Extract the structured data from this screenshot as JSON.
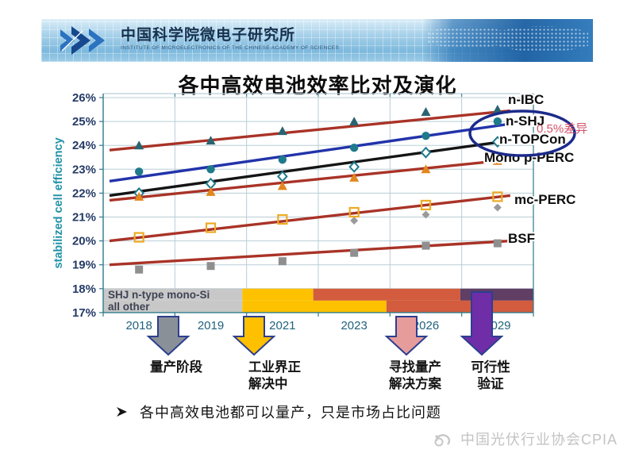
{
  "header": {
    "institute_cn": "中国科学院微电子研究所",
    "institute_en": "INSTITUTE OF MICROELECTRONICS OF THE CHINESE ACADEMY OF SCIENCES"
  },
  "title": "各中高效电池效率比对及演化",
  "chart_data": {
    "type": "line",
    "title": "各中高效电池效率比对及演化",
    "ylabel": "stabilized cell efficiency",
    "ylim": [
      17,
      26
    ],
    "ytick_step": 1,
    "ytick_suffix": "%",
    "grid": true,
    "categories": [
      "2018",
      "2019",
      "2021",
      "2023",
      "2026",
      "2029"
    ],
    "series": [
      {
        "name": "n-IBC",
        "marker": "triangle",
        "marker_color": "#2a6470",
        "line_color": "#a93327",
        "values": [
          24.0,
          24.2,
          24.6,
          25.0,
          25.4,
          25.5
        ],
        "trend": [
          23.8,
          25.45
        ]
      },
      {
        "name": "n-SHJ",
        "marker": "circle",
        "marker_color": "#1f7a8c",
        "line_color": "#2233aa",
        "values": [
          22.9,
          23.0,
          23.4,
          23.9,
          24.4,
          25.0
        ],
        "trend": [
          22.5,
          24.9
        ]
      },
      {
        "name": "n-TOPCon",
        "marker": "diamond-open",
        "marker_color": "#1f7a8c",
        "line_color": "#141414",
        "values": [
          22.0,
          22.4,
          22.7,
          23.1,
          23.7,
          24.15
        ],
        "trend": [
          21.9,
          24.2
        ]
      },
      {
        "name": "Mono p-PERC",
        "marker": "triangle",
        "marker_color": "#e2861f",
        "line_color": "#a93327",
        "values": [
          21.85,
          22.05,
          22.3,
          22.65,
          23.0,
          23.35
        ],
        "trend": [
          21.7,
          23.4
        ]
      },
      {
        "name": "mc-PERC",
        "marker": "square-open",
        "marker_color": "#edaa24",
        "line_color": "#a93327",
        "values": [
          20.15,
          20.55,
          20.9,
          21.2,
          21.5,
          21.85
        ],
        "trend": [
          20.0,
          21.9
        ],
        "secondary": {
          "marker": "diamond",
          "marker_color": "#9a9a9a",
          "values": [
            null,
            null,
            null,
            20.85,
            21.1,
            21.4
          ]
        }
      },
      {
        "name": "BSF",
        "marker": "square",
        "marker_color": "#8f8f8f",
        "line_color": "#a93327",
        "values": [
          18.8,
          18.95,
          19.15,
          19.5,
          19.8,
          19.9
        ],
        "trend": [
          19.0,
          20.0
        ]
      }
    ],
    "annotation": {
      "text": "0.5%差异",
      "color": "#d4536a",
      "ellipse_color": "#1b2a8a"
    },
    "band": {
      "label_line1": "SHJ n-type mono-Si",
      "label_line2": "all other",
      "text_color": "#3f4354",
      "rows": [
        {
          "eff_top": 18.0,
          "eff_bottom": 17.5,
          "segments": [
            {
              "color": "#c8c8c8",
              "from": 0,
              "to": 1.94
            },
            {
              "color": "#fdc100",
              "from": 1.94,
              "to": 2.93
            },
            {
              "color": "#d25c3d",
              "from": 2.93,
              "to": 4.98
            },
            {
              "color": "#613e63",
              "from": 4.98,
              "to": 6
            }
          ]
        },
        {
          "eff_top": 17.5,
          "eff_bottom": 17.0,
          "segments": [
            {
              "color": "#c8c8c8",
              "from": 0,
              "to": 1.94
            },
            {
              "color": "#fdc100",
              "from": 1.94,
              "to": 3.95
            },
            {
              "color": "#d25c3d",
              "from": 3.95,
              "to": 6
            }
          ]
        }
      ]
    },
    "axis_colors": {
      "ytick": "#243a66",
      "xtick": "#20627e",
      "ylabel": "#2292a8",
      "grid": "#b9cdd6",
      "axis": "#2e7a8a"
    }
  },
  "phases": [
    {
      "label_lines": [
        "量产阶段"
      ],
      "arrow_color": "#8a9098"
    },
    {
      "label_lines": [
        "工业界正",
        "解决中"
      ],
      "arrow_color": "#ffc000"
    },
    {
      "label_lines": [
        "寻找量产",
        "解决方案"
      ],
      "arrow_color": "#e79c9c"
    },
    {
      "label_lines": [
        "可行性",
        "验证"
      ],
      "arrow_color": "#6f2da8"
    }
  ],
  "bullet": {
    "text": "各中高效电池都可以量产，只是市场占比问题"
  },
  "footer": {
    "text": "中国光伏行业协会CPIA"
  }
}
